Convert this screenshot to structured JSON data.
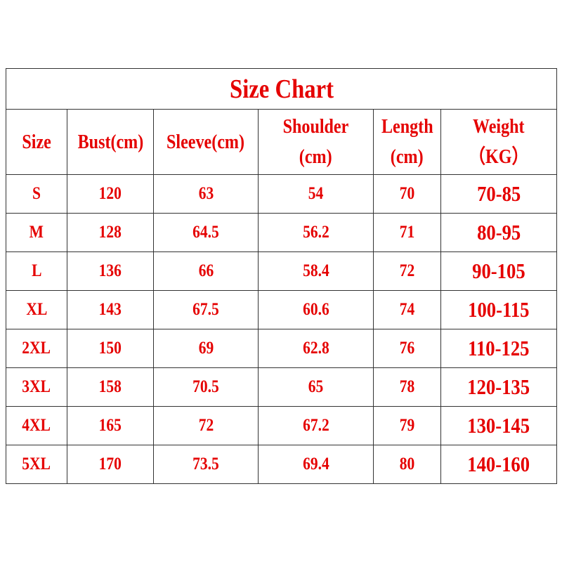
{
  "title": "Size Chart",
  "headers": [
    {
      "line1": "Size",
      "line2": ""
    },
    {
      "line1": "Bust(cm)",
      "line2": ""
    },
    {
      "line1": "Sleeve(cm)",
      "line2": ""
    },
    {
      "line1": "Shoulder",
      "line2": "(cm)"
    },
    {
      "line1": "Length",
      "line2": "(cm)"
    },
    {
      "line1": "Weight",
      "line2": "（KG）"
    }
  ],
  "rows": [
    [
      "S",
      "120",
      "63",
      "54",
      "70",
      "70-85"
    ],
    [
      "M",
      "128",
      "64.5",
      "56.2",
      "71",
      "80-95"
    ],
    [
      "L",
      "136",
      "66",
      "58.4",
      "72",
      "90-105"
    ],
    [
      "XL",
      "143",
      "67.5",
      "60.6",
      "74",
      "100-115"
    ],
    [
      "2XL",
      "150",
      "69",
      "62.8",
      "76",
      "110-125"
    ],
    [
      "3XL",
      "158",
      "70.5",
      "65",
      "78",
      "120-135"
    ],
    [
      "4XL",
      "165",
      "72",
      "67.2",
      "79",
      "130-145"
    ],
    [
      "5XL",
      "170",
      "73.5",
      "69.4",
      "80",
      "140-160"
    ]
  ],
  "colors": {
    "text": "#e50000",
    "border": "#333333"
  }
}
